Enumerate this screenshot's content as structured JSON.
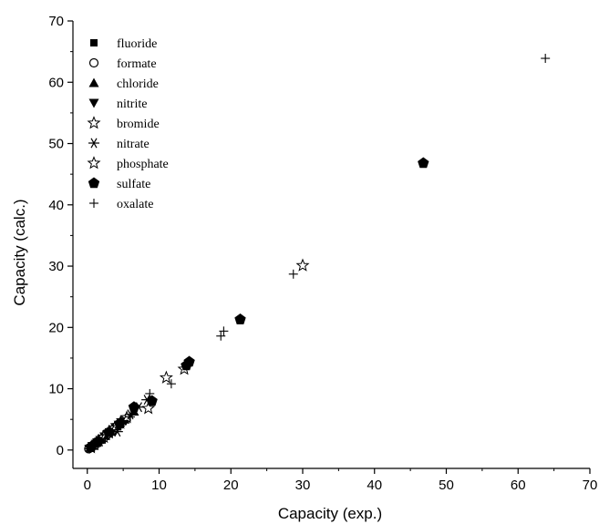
{
  "chart_data": {
    "type": "scatter",
    "title": "",
    "xlabel": "Capacity (exp.)",
    "ylabel": "Capacity (calc.)",
    "xlim": [
      -2,
      70
    ],
    "ylim": [
      -3,
      70
    ],
    "x_ticks": [
      0,
      10,
      20,
      30,
      40,
      50,
      60,
      70
    ],
    "y_ticks": [
      0,
      10,
      20,
      30,
      40,
      50,
      60,
      70
    ],
    "grid": false,
    "legend_position": "top-left",
    "series": [
      {
        "name": "fluoride",
        "marker": "filled-square",
        "color": "#000000",
        "points": [
          [
            0.3,
            0.3
          ],
          [
            0.6,
            0.5
          ],
          [
            1.0,
            0.9
          ],
          [
            1.5,
            1.3
          ],
          [
            2.1,
            1.9
          ],
          [
            2.6,
            2.5
          ],
          [
            3.3,
            3.0
          ],
          [
            4.0,
            3.8
          ],
          [
            5.0,
            4.7
          ]
        ]
      },
      {
        "name": "formate",
        "marker": "open-circle",
        "color": "#000000",
        "points": [
          [
            0.2,
            0.2
          ],
          [
            0.5,
            0.4
          ],
          [
            0.9,
            0.8
          ],
          [
            1.4,
            1.2
          ],
          [
            2.0,
            1.8
          ],
          [
            2.7,
            2.4
          ],
          [
            3.5,
            3.1
          ],
          [
            4.3,
            4.0
          ]
        ]
      },
      {
        "name": "chloride",
        "marker": "filled-triangle-up",
        "color": "#000000",
        "points": [
          [
            0.4,
            0.4
          ],
          [
            0.8,
            0.7
          ],
          [
            1.3,
            1.2
          ],
          [
            1.9,
            1.7
          ],
          [
            2.5,
            2.3
          ],
          [
            3.2,
            3.0
          ],
          [
            4.1,
            3.9
          ],
          [
            5.2,
            5.0
          ],
          [
            6.5,
            6.3
          ]
        ]
      },
      {
        "name": "nitrite",
        "marker": "filled-triangle-down",
        "color": "#000000",
        "points": [
          [
            0.3,
            0.2
          ],
          [
            0.7,
            0.6
          ],
          [
            1.2,
            1.0
          ],
          [
            1.8,
            1.6
          ],
          [
            2.4,
            2.2
          ],
          [
            3.1,
            2.9
          ],
          [
            3.9,
            3.7
          ],
          [
            4.7,
            4.5
          ]
        ]
      },
      {
        "name": "bromide",
        "marker": "open-star",
        "color": "#000000",
        "points": [
          [
            0.5,
            0.4
          ],
          [
            1.0,
            0.9
          ],
          [
            1.6,
            1.5
          ],
          [
            2.3,
            2.1
          ],
          [
            3.0,
            2.8
          ],
          [
            3.8,
            3.6
          ],
          [
            4.6,
            4.4
          ],
          [
            5.5,
            5.3
          ],
          [
            8.5,
            6.8
          ]
        ]
      },
      {
        "name": "nitrate",
        "marker": "asterisk",
        "color": "#000000",
        "points": [
          [
            0.6,
            0.5
          ],
          [
            1.2,
            1.1
          ],
          [
            1.9,
            1.8
          ],
          [
            2.6,
            2.5
          ],
          [
            3.4,
            3.3
          ],
          [
            4.2,
            3.0
          ],
          [
            5.0,
            4.8
          ],
          [
            6.0,
            5.8
          ],
          [
            7.2,
            7.0
          ],
          [
            8.3,
            8.2
          ]
        ]
      },
      {
        "name": "phosphate",
        "marker": "open-star",
        "color": "#000000",
        "points": [
          [
            11.0,
            11.8
          ],
          [
            13.5,
            13.2
          ],
          [
            30.0,
            30.1
          ]
        ]
      },
      {
        "name": "sulfate",
        "marker": "filled-pentagon",
        "color": "#000000",
        "points": [
          [
            0.5,
            0.5
          ],
          [
            1.5,
            1.4
          ],
          [
            3.0,
            2.9
          ],
          [
            4.5,
            4.3
          ],
          [
            6.5,
            7.0
          ],
          [
            9.0,
            8.0
          ],
          [
            13.8,
            13.8
          ],
          [
            14.2,
            14.4
          ],
          [
            21.3,
            21.3
          ],
          [
            46.8,
            46.8
          ]
        ]
      },
      {
        "name": "oxalate",
        "marker": "plus",
        "color": "#000000",
        "points": [
          [
            0.3,
            0.2
          ],
          [
            0.9,
            0.6
          ],
          [
            1.7,
            1.2
          ],
          [
            2.5,
            1.9
          ],
          [
            3.5,
            2.8
          ],
          [
            4.6,
            3.9
          ],
          [
            6.0,
            5.4
          ],
          [
            8.7,
            9.2
          ],
          [
            11.7,
            10.8
          ],
          [
            18.6,
            18.6
          ],
          [
            19.0,
            19.4
          ],
          [
            28.7,
            28.7
          ],
          [
            63.8,
            63.9
          ]
        ]
      }
    ]
  }
}
